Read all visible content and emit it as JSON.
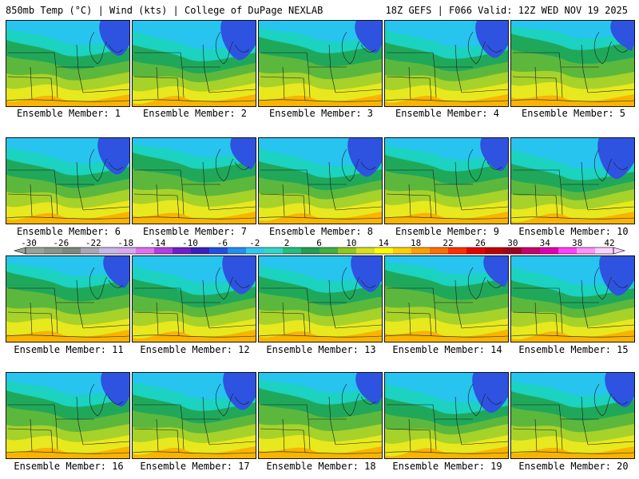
{
  "header": {
    "left": "850mb Temp (°C) | Wind (kts) | College of DuPage NEXLAB",
    "right": "18Z GEFS | F066 Valid: 12Z WED NOV 19 2025"
  },
  "members": [
    "Ensemble Member: 1",
    "Ensemble Member: 2",
    "Ensemble Member: 3",
    "Ensemble Member: 4",
    "Ensemble Member: 5",
    "Ensemble Member: 6",
    "Ensemble Member: 7",
    "Ensemble Member: 8",
    "Ensemble Member: 9",
    "Ensemble Member: 10",
    "Ensemble Member: 11",
    "Ensemble Member: 12",
    "Ensemble Member: 13",
    "Ensemble Member: 14",
    "Ensemble Member: 15",
    "Ensemble Member: 16",
    "Ensemble Member: 17",
    "Ensemble Member: 18",
    "Ensemble Member: 19",
    "Ensemble Member: 20"
  ],
  "colorbar": {
    "labels": [
      "-30",
      "-26",
      "-22",
      "-18",
      "-14",
      "-10",
      "-6",
      "-2",
      "2",
      "6",
      "10",
      "14",
      "18",
      "22",
      "26",
      "30",
      "34",
      "38",
      "42"
    ],
    "colors": [
      "#9aa39a",
      "#8a948a",
      "#7e887e",
      "#a7a7b8",
      "#c8b8e8",
      "#d8a8f0",
      "#e070f0",
      "#b040e0",
      "#7020c8",
      "#3a20c0",
      "#2050e0",
      "#2090f0",
      "#30c8f0",
      "#30d8c8",
      "#20c080",
      "#20a050",
      "#40b040",
      "#90c820",
      "#d8e020",
      "#ffff00",
      "#ffd000",
      "#ffa000",
      "#ff7000",
      "#ff3000",
      "#e80000",
      "#c00000",
      "#a00020",
      "#c80070",
      "#e000b0",
      "#ff40ff",
      "#ff90ff",
      "#ffd0ff"
    ]
  },
  "palette": {
    "blue": "#2e53e0",
    "cyan": "#26c4ef",
    "teal": "#1cd2c0",
    "green": "#20a85a",
    "ygreen": "#5cb83c",
    "lime": "#a6d22a",
    "yellow": "#e8e81e",
    "orange": "#f8b400"
  }
}
